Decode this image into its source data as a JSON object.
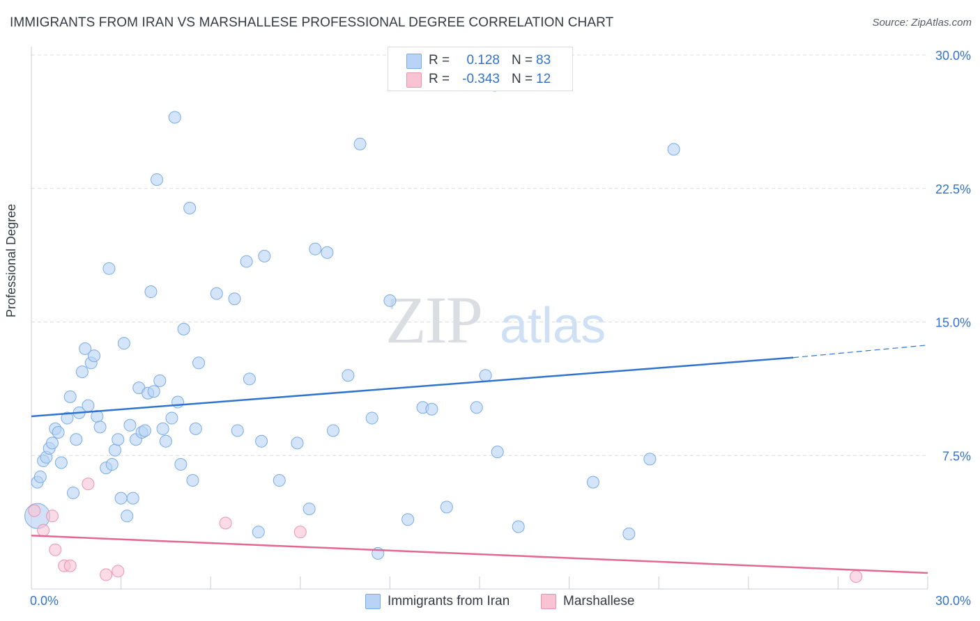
{
  "header": {
    "title": "IMMIGRANTS FROM IRAN VS MARSHALLESE PROFESSIONAL DEGREE CORRELATION CHART",
    "source": "Source: ZipAtlas.com"
  },
  "watermark": {
    "zip": "ZIP",
    "atlas": "atlas"
  },
  "legend": {
    "rows": [
      {
        "r_label": "R =",
        "r_value": "0.128",
        "n_label": "N =",
        "n_value": "83"
      },
      {
        "r_label": "R =",
        "r_value": "-0.343",
        "n_label": "N =",
        "n_value": "12"
      }
    ]
  },
  "colors": {
    "iran_fill": "#b8d3f5",
    "iran_stroke": "#7aaae6",
    "iran_line": "#2f73cf",
    "marsh_fill": "#f8c3d3",
    "marsh_stroke": "#ec93b0",
    "marsh_line": "#e36792",
    "value_text": "#3272c9",
    "grid": "#d8dce2"
  },
  "chart_data": {
    "type": "scatter",
    "ylabel": "Professional Degree",
    "xlim": [
      0,
      30
    ],
    "ylim": [
      0,
      30
    ],
    "x_tick_labels": [
      "0.0%",
      "30.0%"
    ],
    "y_tick_values": [
      7.5,
      15.0,
      22.5,
      30.0
    ],
    "y_tick_labels": [
      "7.5%",
      "15.0%",
      "22.5%",
      "30.0%"
    ],
    "grid": "horizontal dashed",
    "series": [
      {
        "name": "Immigrants from Iran",
        "color": "#b8d3f5",
        "trend": {
          "x": [
            0,
            25.5
          ],
          "y": [
            9.7,
            13.0
          ],
          "dashed_to": [
            30,
            13.7
          ]
        },
        "points": [
          [
            0.2,
            6.0
          ],
          [
            0.3,
            6.3
          ],
          [
            0.4,
            7.2
          ],
          [
            0.5,
            7.4
          ],
          [
            0.6,
            7.9
          ],
          [
            0.7,
            8.2
          ],
          [
            0.8,
            9.0
          ],
          [
            0.9,
            8.8
          ],
          [
            1.0,
            7.1
          ],
          [
            1.2,
            9.6
          ],
          [
            1.3,
            10.8
          ],
          [
            1.4,
            5.4
          ],
          [
            1.5,
            8.4
          ],
          [
            1.6,
            9.9
          ],
          [
            1.7,
            12.2
          ],
          [
            1.8,
            13.5
          ],
          [
            1.9,
            10.3
          ],
          [
            2.0,
            12.7
          ],
          [
            2.1,
            13.1
          ],
          [
            2.2,
            9.7
          ],
          [
            2.3,
            9.1
          ],
          [
            2.5,
            6.8
          ],
          [
            2.6,
            18.0
          ],
          [
            2.7,
            7.0
          ],
          [
            2.8,
            7.8
          ],
          [
            2.9,
            8.4
          ],
          [
            3.0,
            5.1
          ],
          [
            3.1,
            13.8
          ],
          [
            3.2,
            4.1
          ],
          [
            3.3,
            9.2
          ],
          [
            3.4,
            5.1
          ],
          [
            3.5,
            8.4
          ],
          [
            3.6,
            11.3
          ],
          [
            3.7,
            8.8
          ],
          [
            3.8,
            8.9
          ],
          [
            3.9,
            11.0
          ],
          [
            4.0,
            16.7
          ],
          [
            4.1,
            11.1
          ],
          [
            4.2,
            23.0
          ],
          [
            4.3,
            11.7
          ],
          [
            4.4,
            9.0
          ],
          [
            4.5,
            8.3
          ],
          [
            4.7,
            9.6
          ],
          [
            4.8,
            26.5
          ],
          [
            4.9,
            10.5
          ],
          [
            5.0,
            7.0
          ],
          [
            5.1,
            14.6
          ],
          [
            5.3,
            21.4
          ],
          [
            5.4,
            6.1
          ],
          [
            5.5,
            9.0
          ],
          [
            5.6,
            12.7
          ],
          [
            6.2,
            16.6
          ],
          [
            6.8,
            16.3
          ],
          [
            6.9,
            8.9
          ],
          [
            7.2,
            18.4
          ],
          [
            7.3,
            11.8
          ],
          [
            7.6,
            3.2
          ],
          [
            7.7,
            8.3
          ],
          [
            7.8,
            18.7
          ],
          [
            8.3,
            6.1
          ],
          [
            8.9,
            8.2
          ],
          [
            9.3,
            4.5
          ],
          [
            9.5,
            19.1
          ],
          [
            9.9,
            18.9
          ],
          [
            10.1,
            8.9
          ],
          [
            10.6,
            12.0
          ],
          [
            11.0,
            25.0
          ],
          [
            11.4,
            9.6
          ],
          [
            11.6,
            2.0
          ],
          [
            12.0,
            16.2
          ],
          [
            12.6,
            3.9
          ],
          [
            13.1,
            10.2
          ],
          [
            13.4,
            10.1
          ],
          [
            13.9,
            4.6
          ],
          [
            14.9,
            10.2
          ],
          [
            15.2,
            12.0
          ],
          [
            15.5,
            28.3
          ],
          [
            15.6,
            7.7
          ],
          [
            16.3,
            3.5
          ],
          [
            18.8,
            6.0
          ],
          [
            20.0,
            3.1
          ],
          [
            20.7,
            7.3
          ],
          [
            21.5,
            24.7
          ]
        ]
      },
      {
        "name": "Marshallese",
        "color": "#f8c3d3",
        "trend": {
          "x": [
            0,
            30
          ],
          "y": [
            3.0,
            0.9
          ]
        },
        "points": [
          [
            0.1,
            4.4
          ],
          [
            0.4,
            3.3
          ],
          [
            0.7,
            4.1
          ],
          [
            0.8,
            2.2
          ],
          [
            1.1,
            1.3
          ],
          [
            1.3,
            1.3
          ],
          [
            1.9,
            5.9
          ],
          [
            2.5,
            0.8
          ],
          [
            2.9,
            1.0
          ],
          [
            6.5,
            3.7
          ],
          [
            9.0,
            3.2
          ],
          [
            27.6,
            0.7
          ]
        ]
      }
    ]
  },
  "bottom_legend": {
    "items": [
      {
        "label": "Immigrants from Iran"
      },
      {
        "label": "Marshallese"
      }
    ]
  }
}
